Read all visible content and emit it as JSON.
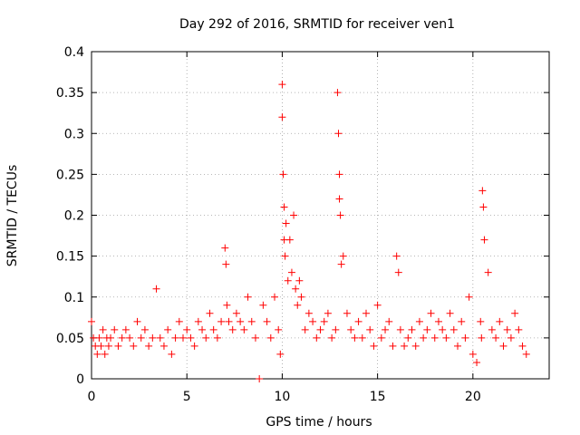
{
  "chart_data": {
    "type": "scatter",
    "title": "Day 292 of 2016, SRMTID for receiver ven1",
    "xlabel": "GPS time / hours",
    "ylabel": "SRMTID / TECUs",
    "xlim": [
      0,
      24
    ],
    "ylim": [
      0,
      0.4
    ],
    "xticks": [
      0,
      5,
      10,
      15,
      20
    ],
    "xtick_labels": [
      "0",
      "5",
      "10",
      "15",
      "20"
    ],
    "yticks": [
      0,
      0.05,
      0.1,
      0.15,
      0.2,
      0.25,
      0.3,
      0.35,
      0.4
    ],
    "ytick_labels": [
      "0",
      "0.05",
      "0.1",
      "0.15",
      "0.2",
      "0.25",
      "0.3",
      "0.35",
      "0.4"
    ],
    "grid": true,
    "marker": "+",
    "color": "#ff0000",
    "series": [
      {
        "name": "ven1",
        "x": [
          0.0,
          0.1,
          0.2,
          0.3,
          0.4,
          0.5,
          0.6,
          0.7,
          0.8,
          0.9,
          1.0,
          1.2,
          1.4,
          1.6,
          1.8,
          2.0,
          2.2,
          2.4,
          2.6,
          2.8,
          3.0,
          3.2,
          3.4,
          3.6,
          3.8,
          4.0,
          4.2,
          4.4,
          4.6,
          4.8,
          5.0,
          5.2,
          5.4,
          5.6,
          5.8,
          6.0,
          6.2,
          6.4,
          6.6,
          6.8,
          7.0,
          7.05,
          7.1,
          7.2,
          7.4,
          7.6,
          7.8,
          8.0,
          8.2,
          8.4,
          8.6,
          8.8,
          9.0,
          9.2,
          9.4,
          9.6,
          9.8,
          9.9,
          10.0,
          10.0,
          10.05,
          10.1,
          10.1,
          10.15,
          10.2,
          10.3,
          10.4,
          10.5,
          10.6,
          10.7,
          10.8,
          10.9,
          11.0,
          11.2,
          11.4,
          11.6,
          11.8,
          12.0,
          12.2,
          12.4,
          12.6,
          12.8,
          12.9,
          12.95,
          13.0,
          13.0,
          13.05,
          13.1,
          13.2,
          13.4,
          13.6,
          13.8,
          14.0,
          14.2,
          14.4,
          14.6,
          14.8,
          15.0,
          15.2,
          15.4,
          15.6,
          15.8,
          16.0,
          16.1,
          16.2,
          16.4,
          16.6,
          16.8,
          17.0,
          17.2,
          17.4,
          17.6,
          17.8,
          18.0,
          18.2,
          18.4,
          18.6,
          18.8,
          19.0,
          19.2,
          19.4,
          19.6,
          19.8,
          20.0,
          20.2,
          20.4,
          20.45,
          20.5,
          20.55,
          20.6,
          20.8,
          21.0,
          21.2,
          21.4,
          21.6,
          21.8,
          22.0,
          22.2,
          22.4,
          22.6,
          22.8
        ],
        "y": [
          0.07,
          0.05,
          0.04,
          0.03,
          0.05,
          0.04,
          0.06,
          0.03,
          0.05,
          0.04,
          0.05,
          0.06,
          0.04,
          0.05,
          0.06,
          0.05,
          0.04,
          0.07,
          0.05,
          0.06,
          0.04,
          0.05,
          0.11,
          0.05,
          0.04,
          0.06,
          0.03,
          0.05,
          0.07,
          0.05,
          0.06,
          0.05,
          0.04,
          0.07,
          0.06,
          0.05,
          0.08,
          0.06,
          0.05,
          0.07,
          0.16,
          0.14,
          0.09,
          0.07,
          0.06,
          0.08,
          0.07,
          0.06,
          0.1,
          0.07,
          0.05,
          0.0,
          0.09,
          0.07,
          0.05,
          0.1,
          0.06,
          0.03,
          0.36,
          0.32,
          0.25,
          0.21,
          0.17,
          0.15,
          0.19,
          0.12,
          0.17,
          0.13,
          0.2,
          0.11,
          0.09,
          0.12,
          0.1,
          0.06,
          0.08,
          0.07,
          0.05,
          0.06,
          0.07,
          0.08,
          0.05,
          0.06,
          0.35,
          0.3,
          0.25,
          0.22,
          0.2,
          0.14,
          0.15,
          0.08,
          0.06,
          0.05,
          0.07,
          0.05,
          0.08,
          0.06,
          0.04,
          0.09,
          0.05,
          0.06,
          0.07,
          0.04,
          0.15,
          0.13,
          0.06,
          0.04,
          0.05,
          0.06,
          0.04,
          0.07,
          0.05,
          0.06,
          0.08,
          0.05,
          0.07,
          0.06,
          0.05,
          0.08,
          0.06,
          0.04,
          0.07,
          0.05,
          0.1,
          0.03,
          0.02,
          0.07,
          0.05,
          0.23,
          0.21,
          0.17,
          0.13,
          0.06,
          0.05,
          0.07,
          0.04,
          0.06,
          0.05,
          0.08,
          0.06,
          0.04,
          0.03
        ]
      }
    ]
  }
}
